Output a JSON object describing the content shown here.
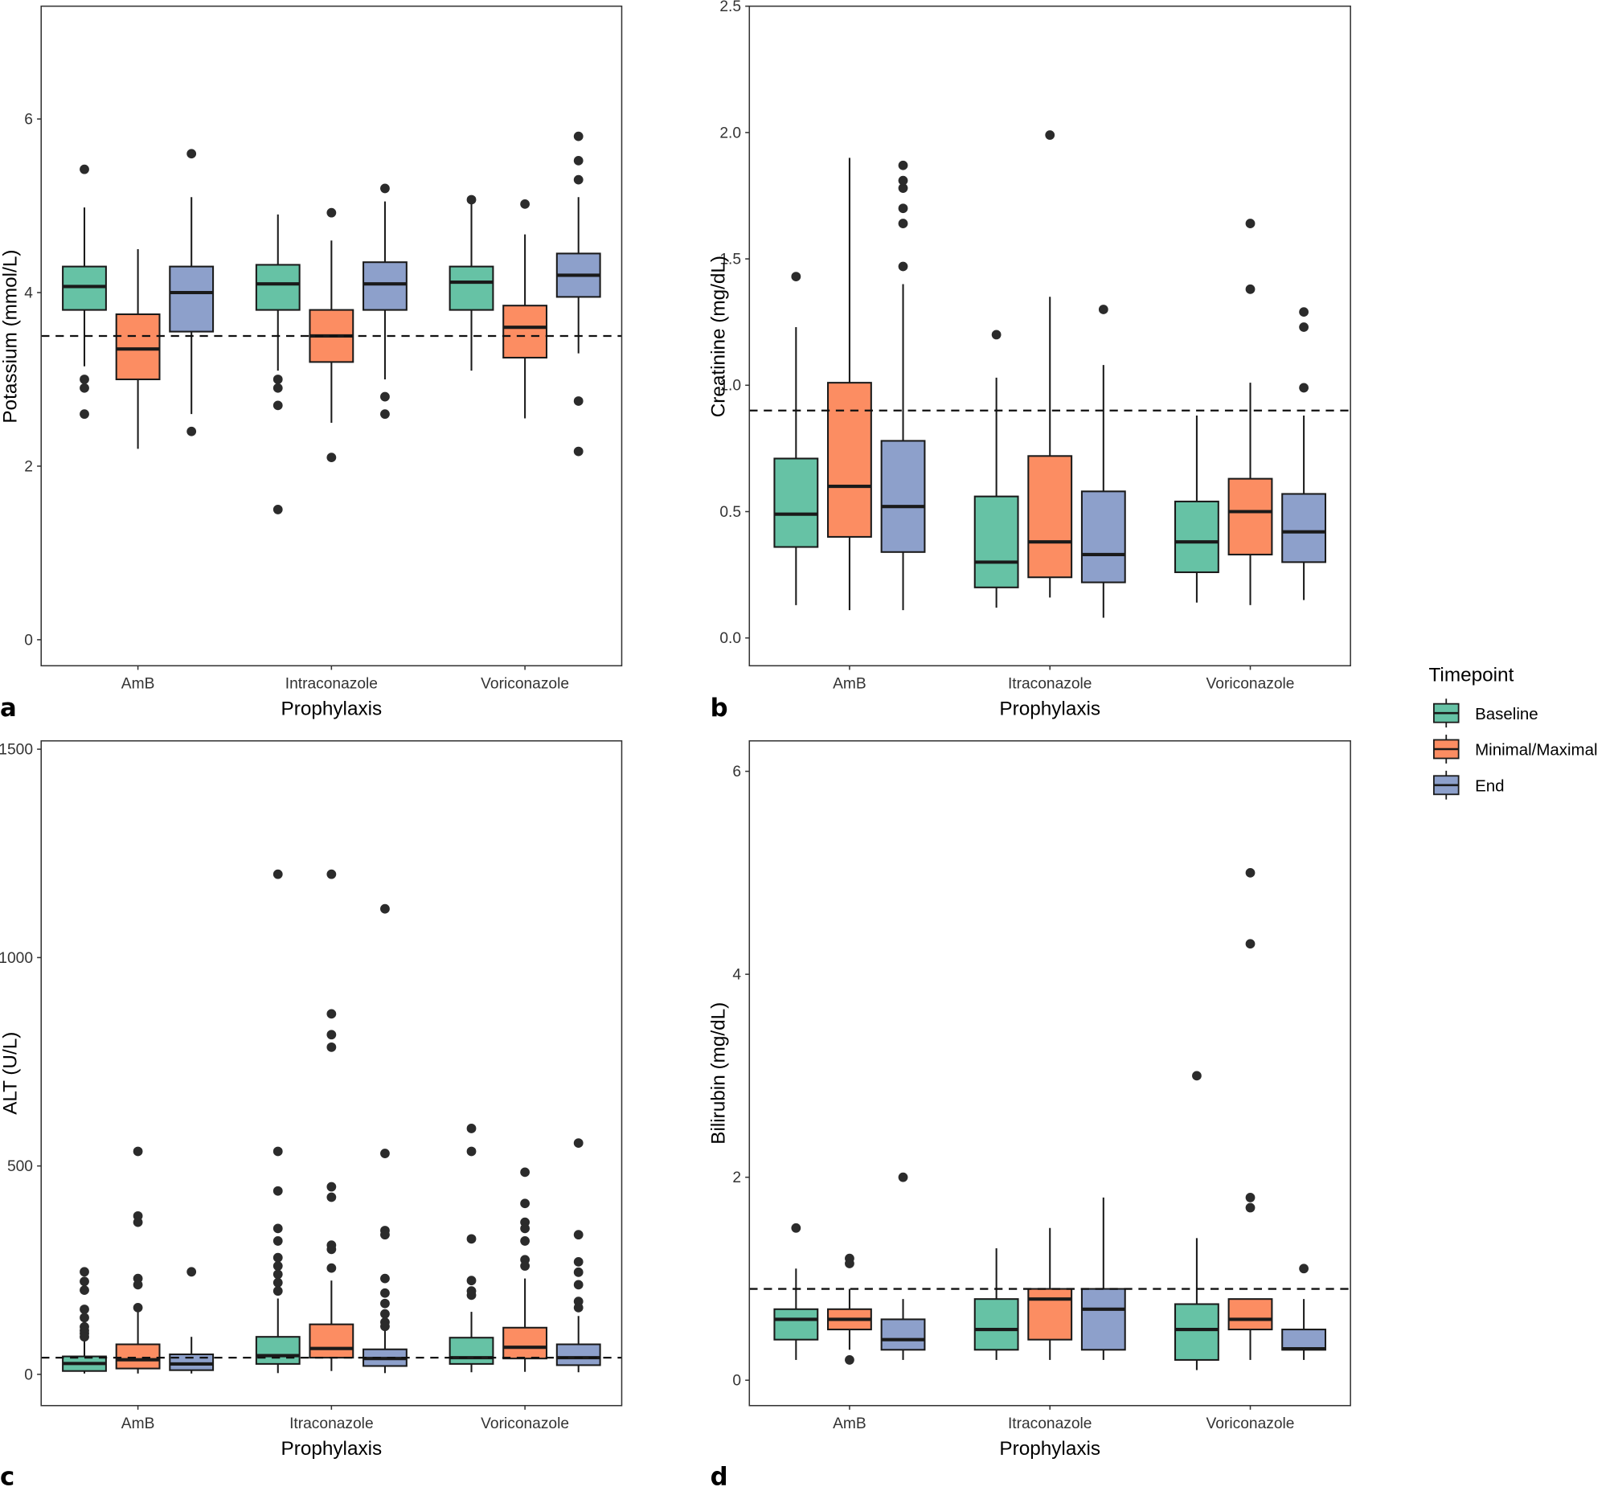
{
  "figure": {
    "legend": {
      "title": "Timepoint",
      "position": "right",
      "items": [
        {
          "label": "Baseline",
          "color": "#66c2a5"
        },
        {
          "label": "Minimal/Maximal",
          "color": "#fc8d62"
        },
        {
          "label": "End",
          "color": "#8da0cb"
        }
      ]
    }
  },
  "chart_data": [
    {
      "type": "box",
      "panel_letter": "a",
      "xlabel": "Prophylaxis",
      "ylabel": "Potassium (mmol/L)",
      "categories": [
        "AmB",
        "Intraconazole",
        "Voriconazole"
      ],
      "ylim": [
        -0.3,
        7.3
      ],
      "yticks": [
        0,
        2,
        4,
        6
      ],
      "ytick_labels": [
        "0",
        "2",
        "4",
        "6"
      ],
      "reference_line": 3.5,
      "series": [
        {
          "name": "Baseline",
          "boxes": [
            {
              "q1": 3.8,
              "median": 4.07,
              "q3": 4.3,
              "lo": 3.15,
              "hi": 4.98,
              "outliers": [
                5.42,
                3.0,
                2.9,
                2.6
              ]
            },
            {
              "q1": 3.8,
              "median": 4.1,
              "q3": 4.32,
              "lo": 3.1,
              "hi": 4.9,
              "outliers": [
                3.0,
                2.9,
                2.7,
                1.5
              ]
            },
            {
              "q1": 3.8,
              "median": 4.12,
              "q3": 4.3,
              "lo": 3.1,
              "hi": 5.07,
              "outliers": [
                5.07
              ]
            }
          ]
        },
        {
          "name": "Minimal/Maximal",
          "boxes": [
            {
              "q1": 3.0,
              "median": 3.35,
              "q3": 3.75,
              "lo": 2.2,
              "hi": 4.5,
              "outliers": []
            },
            {
              "q1": 3.2,
              "median": 3.5,
              "q3": 3.8,
              "lo": 2.5,
              "hi": 4.6,
              "outliers": [
                4.92,
                2.1
              ]
            },
            {
              "q1": 3.25,
              "median": 3.6,
              "q3": 3.85,
              "lo": 2.55,
              "hi": 4.67,
              "outliers": [
                5.02
              ]
            }
          ]
        },
        {
          "name": "End",
          "boxes": [
            {
              "q1": 3.55,
              "median": 4.0,
              "q3": 4.3,
              "lo": 2.6,
              "hi": 5.1,
              "outliers": [
                5.6,
                2.4
              ]
            },
            {
              "q1": 3.8,
              "median": 4.1,
              "q3": 4.35,
              "lo": 3.0,
              "hi": 5.05,
              "outliers": [
                5.2,
                2.8,
                2.6
              ]
            },
            {
              "q1": 3.95,
              "median": 4.2,
              "q3": 4.45,
              "lo": 3.3,
              "hi": 5.1,
              "outliers": [
                5.8,
                5.52,
                5.3,
                2.75,
                2.17
              ]
            }
          ]
        }
      ]
    },
    {
      "type": "box",
      "panel_letter": "b",
      "xlabel": "Prophylaxis",
      "ylabel": "Creatinine (mg/dL)",
      "categories": [
        "AmB",
        "Itraconazole",
        "Voriconazole"
      ],
      "ylim": [
        -0.11,
        2.5
      ],
      "yticks": [
        0.0,
        0.5,
        1.0,
        1.5,
        2.0,
        2.5
      ],
      "ytick_labels": [
        "0.0",
        "0.5",
        "1.0",
        "1.5",
        "2.0",
        "2.5"
      ],
      "reference_line": 0.9,
      "series": [
        {
          "name": "Baseline",
          "boxes": [
            {
              "q1": 0.36,
              "median": 0.49,
              "q3": 0.71,
              "lo": 0.13,
              "hi": 1.23,
              "outliers": [
                1.43
              ]
            },
            {
              "q1": 0.2,
              "median": 0.3,
              "q3": 0.56,
              "lo": 0.12,
              "hi": 1.03,
              "outliers": [
                1.2
              ]
            },
            {
              "q1": 0.26,
              "median": 0.38,
              "q3": 0.54,
              "lo": 0.14,
              "hi": 0.88,
              "outliers": []
            }
          ]
        },
        {
          "name": "Minimal/Maximal",
          "boxes": [
            {
              "q1": 0.4,
              "median": 0.6,
              "q3": 1.01,
              "lo": 0.11,
              "hi": 1.9,
              "outliers": []
            },
            {
              "q1": 0.24,
              "median": 0.38,
              "q3": 0.72,
              "lo": 0.16,
              "hi": 1.35,
              "outliers": [
                1.99
              ]
            },
            {
              "q1": 0.33,
              "median": 0.5,
              "q3": 0.63,
              "lo": 0.13,
              "hi": 1.01,
              "outliers": [
                1.38,
                1.64
              ]
            }
          ]
        },
        {
          "name": "End",
          "boxes": [
            {
              "q1": 0.34,
              "median": 0.52,
              "q3": 0.78,
              "lo": 0.11,
              "hi": 1.4,
              "outliers": [
                1.47,
                1.64,
                1.7,
                1.78,
                1.81,
                1.87
              ]
            },
            {
              "q1": 0.22,
              "median": 0.33,
              "q3": 0.58,
              "lo": 0.08,
              "hi": 1.08,
              "outliers": [
                1.3
              ]
            },
            {
              "q1": 0.3,
              "median": 0.42,
              "q3": 0.57,
              "lo": 0.15,
              "hi": 0.88,
              "outliers": [
                0.99,
                1.23,
                1.29
              ]
            }
          ]
        }
      ]
    },
    {
      "type": "box",
      "panel_letter": "c",
      "xlabel": "Prophylaxis",
      "ylabel": "ALT (U/L)",
      "categories": [
        "AmB",
        "Itraconazole",
        "Voriconazole"
      ],
      "ylim": [
        -75,
        1520
      ],
      "yticks": [
        0,
        500,
        1000,
        1500
      ],
      "ytick_labels": [
        "0",
        "500",
        "1000",
        "1500"
      ],
      "reference_line": 40,
      "series": [
        {
          "name": "Baseline",
          "boxes": [
            {
              "q1": 8,
              "median": 26,
              "q3": 43,
              "lo": 2,
              "hi": 81,
              "outliers": [
                246,
                223,
                202,
                156,
                136,
                114,
                105,
                98,
                90
              ]
            },
            {
              "q1": 25,
              "median": 45,
              "q3": 90,
              "lo": 3,
              "hi": 182,
              "outliers": [
                1200,
                535,
                440,
                350,
                320,
                280,
                260,
                240,
                220,
                200
              ]
            },
            {
              "q1": 25,
              "median": 40,
              "q3": 88,
              "lo": 5,
              "hi": 150,
              "outliers": [
                590,
                535,
                325,
                225,
                200,
                190
              ]
            }
          ]
        },
        {
          "name": "Minimal/Maximal",
          "boxes": [
            {
              "q1": 14,
              "median": 35,
              "q3": 72,
              "lo": 2,
              "hi": 155,
              "outliers": [
                535,
                380,
                365,
                230,
                215,
                160
              ]
            },
            {
              "q1": 40,
              "median": 62,
              "q3": 120,
              "lo": 8,
              "hi": 225,
              "outliers": [
                1200,
                865,
                815,
                785,
                450,
                425,
                310,
                300,
                255
              ]
            },
            {
              "q1": 38,
              "median": 65,
              "q3": 112,
              "lo": 6,
              "hi": 230,
              "outliers": [
                485,
                410,
                365,
                350,
                320,
                275,
                260
              ]
            }
          ]
        },
        {
          "name": "End",
          "boxes": [
            {
              "q1": 10,
              "median": 25,
              "q3": 48,
              "lo": 2,
              "hi": 90,
              "outliers": [
                246
              ]
            },
            {
              "q1": 20,
              "median": 38,
              "q3": 60,
              "lo": 3,
              "hi": 108,
              "outliers": [
                1117,
                530,
                345,
                335,
                230,
                195,
                170,
                145,
                125,
                115
              ]
            },
            {
              "q1": 22,
              "median": 40,
              "q3": 72,
              "lo": 5,
              "hi": 140,
              "outliers": [
                555,
                335,
                270,
                245,
                215,
                175,
                160
              ]
            }
          ]
        }
      ]
    },
    {
      "type": "box",
      "panel_letter": "d",
      "xlabel": "Prophylaxis",
      "ylabel": "Bilirubin (mg/dL)",
      "categories": [
        "AmB",
        "Itraconazole",
        "Voriconazole"
      ],
      "ylim": [
        -0.25,
        6.3
      ],
      "yticks": [
        0,
        2,
        4,
        6
      ],
      "ytick_labels": [
        "0",
        "2",
        "4",
        "6"
      ],
      "reference_line": 0.9,
      "series": [
        {
          "name": "Baseline",
          "boxes": [
            {
              "q1": 0.4,
              "median": 0.6,
              "q3": 0.7,
              "lo": 0.2,
              "hi": 1.1,
              "outliers": [
                1.5
              ]
            },
            {
              "q1": 0.3,
              "median": 0.5,
              "q3": 0.8,
              "lo": 0.2,
              "hi": 1.3,
              "outliers": []
            },
            {
              "q1": 0.2,
              "median": 0.5,
              "q3": 0.75,
              "lo": 0.1,
              "hi": 1.4,
              "outliers": [
                3.0
              ]
            }
          ]
        },
        {
          "name": "Minimal/Maximal",
          "boxes": [
            {
              "q1": 0.5,
              "median": 0.6,
              "q3": 0.7,
              "lo": 0.3,
              "hi": 0.9,
              "outliers": [
                1.2,
                1.15,
                0.2
              ]
            },
            {
              "q1": 0.4,
              "median": 0.8,
              "q3": 0.9,
              "lo": 0.2,
              "hi": 1.5,
              "outliers": []
            },
            {
              "q1": 0.5,
              "median": 0.6,
              "q3": 0.8,
              "lo": 0.2,
              "hi": 0.8,
              "outliers": [
                5.0,
                4.3,
                1.8,
                1.7
              ]
            }
          ]
        },
        {
          "name": "End",
          "boxes": [
            {
              "q1": 0.3,
              "median": 0.4,
              "q3": 0.6,
              "lo": 0.2,
              "hi": 0.8,
              "outliers": [
                2.0
              ]
            },
            {
              "q1": 0.3,
              "median": 0.7,
              "q3": 0.9,
              "lo": 0.2,
              "hi": 1.8,
              "outliers": []
            },
            {
              "q1": 0.3,
              "median": 0.31,
              "q3": 0.5,
              "lo": 0.2,
              "hi": 0.8,
              "outliers": [
                1.1
              ]
            }
          ]
        }
      ]
    }
  ]
}
